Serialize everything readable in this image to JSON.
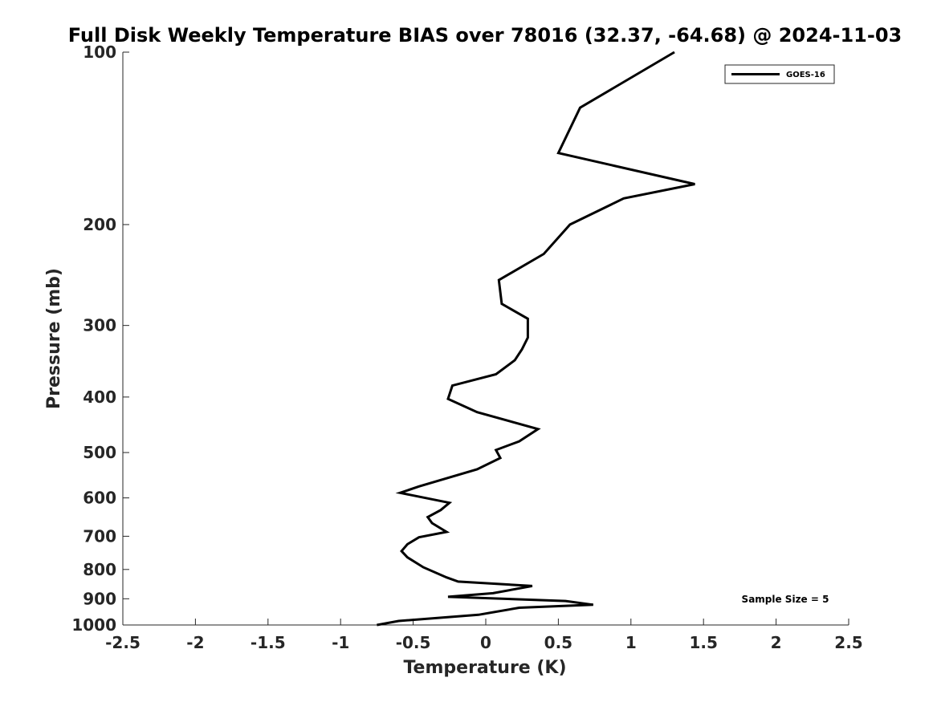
{
  "chart_data": {
    "type": "line",
    "title": "Full Disk Weekly Temperature BIAS over 78016 (32.37, -64.68) @ 2024-11-03",
    "xlabel": "Temperature (K)",
    "ylabel": "Pressure (mb)",
    "xlim": [
      -2.5,
      2.5
    ],
    "ylim": [
      100,
      1000
    ],
    "y_scale": "log",
    "y_reversed": true,
    "x_ticks": [
      -2.5,
      -2,
      -1.5,
      -1,
      -0.5,
      0,
      0.5,
      1,
      1.5,
      2,
      2.5
    ],
    "x_tick_labels": [
      "-2.5",
      "-2",
      "-1.5",
      "-1",
      "-0.5",
      "0",
      "0.5",
      "1",
      "1.5",
      "2",
      "2.5"
    ],
    "y_ticks": [
      100,
      200,
      300,
      400,
      500,
      600,
      700,
      800,
      900,
      1000
    ],
    "y_tick_labels": [
      "100",
      "200",
      "300",
      "400",
      "500",
      "600",
      "700",
      "800",
      "900",
      "1000"
    ],
    "grid": false,
    "legend_position": "top-right",
    "series": [
      {
        "name": "GOES-16",
        "color": "#000000",
        "points": [
          {
            "x": 1.3,
            "p": 100
          },
          {
            "x": 0.65,
            "p": 125
          },
          {
            "x": 0.5,
            "p": 150
          },
          {
            "x": 1.44,
            "p": 170
          },
          {
            "x": 0.95,
            "p": 180
          },
          {
            "x": 0.58,
            "p": 200
          },
          {
            "x": 0.4,
            "p": 225
          },
          {
            "x": 0.09,
            "p": 250
          },
          {
            "x": 0.11,
            "p": 275
          },
          {
            "x": 0.29,
            "p": 292
          },
          {
            "x": 0.29,
            "p": 315
          },
          {
            "x": 0.25,
            "p": 330
          },
          {
            "x": 0.2,
            "p": 345
          },
          {
            "x": 0.07,
            "p": 365
          },
          {
            "x": -0.23,
            "p": 382
          },
          {
            "x": -0.26,
            "p": 403
          },
          {
            "x": -0.06,
            "p": 425
          },
          {
            "x": 0.36,
            "p": 455
          },
          {
            "x": 0.23,
            "p": 478
          },
          {
            "x": 0.07,
            "p": 495
          },
          {
            "x": 0.1,
            "p": 511
          },
          {
            "x": -0.06,
            "p": 535
          },
          {
            "x": -0.46,
            "p": 573
          },
          {
            "x": -0.59,
            "p": 588
          },
          {
            "x": -0.25,
            "p": 612
          },
          {
            "x": -0.31,
            "p": 630
          },
          {
            "x": -0.4,
            "p": 648
          },
          {
            "x": -0.37,
            "p": 664
          },
          {
            "x": -0.27,
            "p": 688
          },
          {
            "x": -0.46,
            "p": 703
          },
          {
            "x": -0.54,
            "p": 723
          },
          {
            "x": -0.58,
            "p": 743
          },
          {
            "x": -0.54,
            "p": 762
          },
          {
            "x": -0.43,
            "p": 793
          },
          {
            "x": -0.27,
            "p": 826
          },
          {
            "x": -0.19,
            "p": 840
          },
          {
            "x": 0.32,
            "p": 855
          },
          {
            "x": 0.05,
            "p": 880
          },
          {
            "x": -0.26,
            "p": 893
          },
          {
            "x": 0.55,
            "p": 908
          },
          {
            "x": 0.74,
            "p": 922
          },
          {
            "x": 0.23,
            "p": 933
          },
          {
            "x": -0.05,
            "p": 960
          },
          {
            "x": -0.6,
            "p": 984
          },
          {
            "x": -0.75,
            "p": 1000
          }
        ]
      }
    ],
    "annotations": [
      {
        "text": "Sample Size = 5",
        "position": "bottom-right"
      }
    ]
  }
}
